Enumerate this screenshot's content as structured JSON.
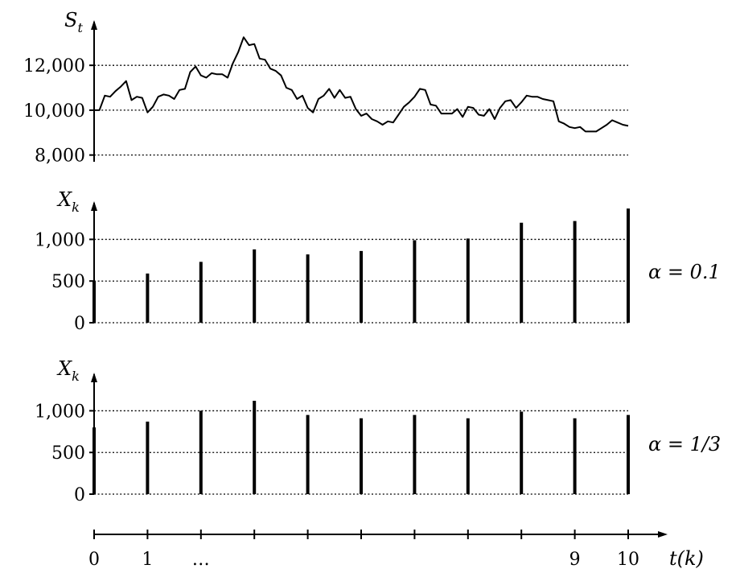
{
  "chart_data": [
    {
      "type": "line",
      "ylabel": "S",
      "ylabel_sub": "t",
      "yticks": [
        8000,
        10000,
        12000
      ],
      "ytick_labels": [
        "8,000",
        "10,000",
        "12,000"
      ],
      "ylim": [
        7700,
        13800
      ],
      "xlim": [
        0,
        10
      ],
      "grid": "horizontal-dotted",
      "x": [
        0,
        0.1,
        0.2,
        0.3,
        0.4,
        0.5,
        0.6,
        0.7,
        0.8,
        0.9,
        1.0,
        1.1,
        1.2,
        1.3,
        1.4,
        1.5,
        1.6,
        1.7,
        1.8,
        1.9,
        2.0,
        2.1,
        2.2,
        2.3,
        2.4,
        2.5,
        2.6,
        2.7,
        2.8,
        2.9,
        3.0,
        3.1,
        3.2,
        3.3,
        3.4,
        3.5,
        3.6,
        3.7,
        3.8,
        3.9,
        4.0,
        4.1,
        4.2,
        4.3,
        4.4,
        4.5,
        4.6,
        4.7,
        4.8,
        4.9,
        5.0,
        5.1,
        5.2,
        5.3,
        5.4,
        5.5,
        5.6,
        5.7,
        5.8,
        5.9,
        6.0,
        6.1,
        6.2,
        6.3,
        6.4,
        6.5,
        6.6,
        6.7,
        6.8,
        6.9,
        7.0,
        7.1,
        7.2,
        7.3,
        7.4,
        7.5,
        7.6,
        7.7,
        7.8,
        7.9,
        8.0,
        8.1,
        8.2,
        8.3,
        8.4,
        8.5,
        8.6,
        8.7,
        8.8,
        8.9,
        9.0,
        9.1,
        9.2,
        9.3,
        9.4,
        9.5,
        9.6,
        9.7,
        9.8,
        9.9,
        10.0
      ],
      "values": [
        10000,
        10000,
        10650,
        10600,
        10850,
        11050,
        11300,
        10450,
        10600,
        10550,
        9900,
        10150,
        10600,
        10700,
        10650,
        10500,
        10900,
        10950,
        11700,
        11950,
        11550,
        11450,
        11650,
        11600,
        11600,
        11450,
        12100,
        12600,
        13250,
        12900,
        12950,
        12300,
        12250,
        11850,
        11750,
        11550,
        11000,
        10900,
        10500,
        10650,
        10100,
        9900,
        10500,
        10650,
        10950,
        10550,
        10900,
        10550,
        10600,
        10050,
        9750,
        9850,
        9600,
        9500,
        9350,
        9500,
        9450,
        9800,
        10150,
        10350,
        10600,
        10950,
        10900,
        10250,
        10200,
        9850,
        9850,
        9850,
        10050,
        9700,
        10150,
        10100,
        9800,
        9750,
        10050,
        9600,
        10100,
        10400,
        10450,
        10100,
        10350,
        10650,
        10600,
        10600,
        10500,
        10450,
        10400,
        9500,
        9400,
        9250,
        9200,
        9250,
        9050,
        9050,
        9050,
        9200,
        9350,
        9550,
        9450,
        9350,
        9300
      ]
    },
    {
      "type": "bar",
      "ylabel": "X",
      "ylabel_sub": "k",
      "annotation": "α = 0.1",
      "yticks": [
        0,
        500,
        1000
      ],
      "ytick_labels": [
        "0",
        "500",
        "1,000"
      ],
      "ylim": [
        0,
        1400
      ],
      "xlim": [
        0,
        10
      ],
      "grid": "horizontal-dotted",
      "x": [
        0,
        1,
        2,
        3,
        4,
        5,
        6,
        7,
        8,
        9,
        10
      ],
      "values": [
        500,
        590,
        730,
        880,
        820,
        860,
        990,
        1010,
        1200,
        1220,
        1370
      ]
    },
    {
      "type": "bar",
      "ylabel": "X",
      "ylabel_sub": "k",
      "annotation": "α = 1/3",
      "yticks": [
        0,
        500,
        1000
      ],
      "ytick_labels": [
        "0",
        "500",
        "1,000"
      ],
      "ylim": [
        0,
        1400
      ],
      "xlim": [
        0,
        10
      ],
      "grid": "horizontal-dotted",
      "x": [
        0,
        1,
        2,
        3,
        4,
        5,
        6,
        7,
        8,
        9,
        10
      ],
      "values": [
        800,
        870,
        1000,
        1120,
        950,
        910,
        950,
        910,
        990,
        910,
        950
      ]
    }
  ],
  "time_axis": {
    "tick_count": 11,
    "tick_labels": [
      {
        "x": 0,
        "label": "0"
      },
      {
        "x": 1,
        "label": "1"
      },
      {
        "x": 2,
        "label": "…"
      },
      {
        "x": 9,
        "label": "9"
      },
      {
        "x": 10,
        "label": "10"
      }
    ],
    "label": "t(k)"
  }
}
